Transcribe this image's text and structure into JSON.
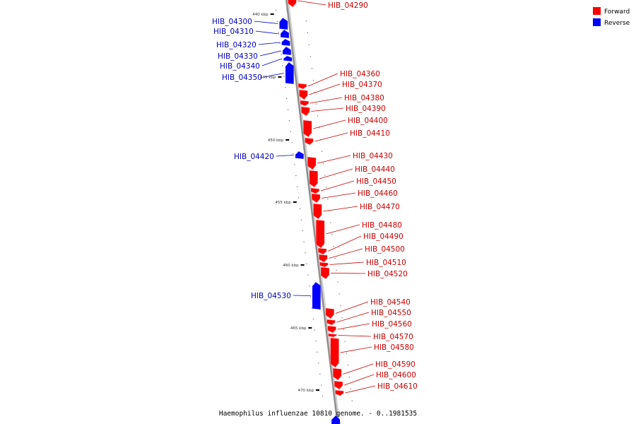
{
  "colors": {
    "forward": "#ff0000",
    "reverse": "#0000ff",
    "forward_label": "#c80000",
    "reverse_label": "#0000c0",
    "axis": "#999999"
  },
  "legend": [
    {
      "label": "Forward",
      "color": "#ff0000"
    },
    {
      "label": "Reverse",
      "color": "#0000ff"
    }
  ],
  "caption": "Haemophilus influenzae 10810 genome. - 0..1981535",
  "axis": {
    "unit": "kbp",
    "ticks": [
      "440 kbp",
      "445 kbp",
      "450 kbp",
      "455 kbp",
      "460 kbp",
      "465 kbp",
      "470 kbp"
    ]
  },
  "genes": [
    {
      "id": "HIB_04290",
      "strand": "forward"
    },
    {
      "id": "HIB_04300",
      "strand": "reverse"
    },
    {
      "id": "HIB_04310",
      "strand": "reverse"
    },
    {
      "id": "HIB_04320",
      "strand": "reverse"
    },
    {
      "id": "HIB_04330",
      "strand": "reverse"
    },
    {
      "id": "HIB_04340",
      "strand": "reverse"
    },
    {
      "id": "HIB_04350",
      "strand": "reverse"
    },
    {
      "id": "HIB_04360",
      "strand": "forward"
    },
    {
      "id": "HIB_04370",
      "strand": "forward"
    },
    {
      "id": "HIB_04380",
      "strand": "forward"
    },
    {
      "id": "HIB_04390",
      "strand": "forward"
    },
    {
      "id": "HIB_04400",
      "strand": "forward"
    },
    {
      "id": "HIB_04410",
      "strand": "forward"
    },
    {
      "id": "HIB_04420",
      "strand": "reverse"
    },
    {
      "id": "HIB_04430",
      "strand": "forward"
    },
    {
      "id": "HIB_04440",
      "strand": "forward"
    },
    {
      "id": "HIB_04450",
      "strand": "forward"
    },
    {
      "id": "HIB_04460",
      "strand": "forward"
    },
    {
      "id": "HIB_04470",
      "strand": "forward"
    },
    {
      "id": "HIB_04480",
      "strand": "forward"
    },
    {
      "id": "HIB_04490",
      "strand": "forward"
    },
    {
      "id": "HIB_04500",
      "strand": "forward"
    },
    {
      "id": "HIB_04510",
      "strand": "forward"
    },
    {
      "id": "HIB_04520",
      "strand": "forward"
    },
    {
      "id": "HIB_04530",
      "strand": "reverse"
    },
    {
      "id": "HIB_04540",
      "strand": "forward"
    },
    {
      "id": "HIB_04550",
      "strand": "forward"
    },
    {
      "id": "HIB_04560",
      "strand": "forward"
    },
    {
      "id": "HIB_04570",
      "strand": "forward"
    },
    {
      "id": "HIB_04580",
      "strand": "forward"
    },
    {
      "id": "HIB_04590",
      "strand": "forward"
    },
    {
      "id": "HIB_04600",
      "strand": "forward"
    },
    {
      "id": "HIB_04610",
      "strand": "forward"
    }
  ]
}
